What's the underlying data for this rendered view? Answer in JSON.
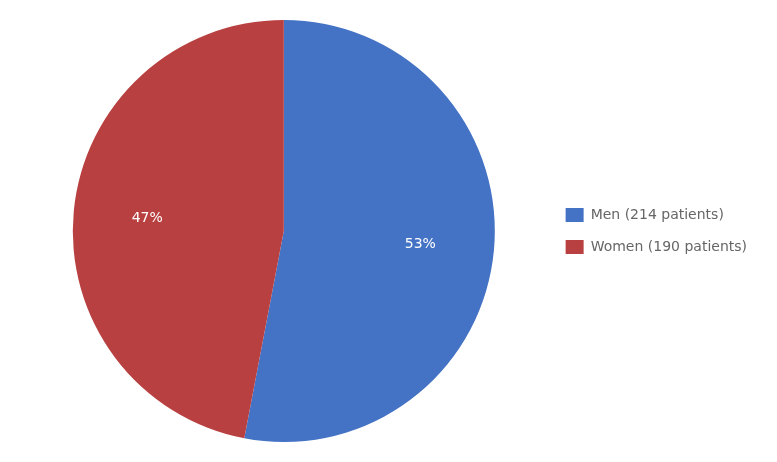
{
  "chart_data": {
    "type": "pie",
    "categories": [
      "Men (214 patients)",
      "Women (190 patients)"
    ],
    "values": [
      53,
      47
    ],
    "value_labels": [
      "53%",
      "47%"
    ],
    "colors": [
      "#4472C4",
      "#B94040"
    ],
    "data_labels": true,
    "legend": "right"
  }
}
